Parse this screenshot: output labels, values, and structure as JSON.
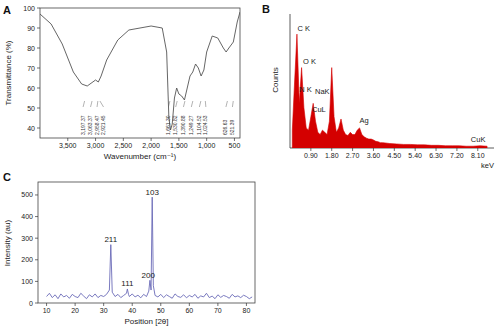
{
  "chart_data": [
    {
      "type": "line",
      "title": "A",
      "x_label": "Wavenumber (cm⁻¹)",
      "y_label": "Transmittance (%)",
      "color": "#555555",
      "x": [
        4000,
        3800,
        3600,
        3400,
        3250,
        3150,
        3000,
        2950,
        2900,
        2800,
        2600,
        2400,
        2200,
        2000,
        1800,
        1720,
        1680,
        1650,
        1620,
        1580,
        1540,
        1500,
        1450,
        1400,
        1350,
        1300,
        1250,
        1200,
        1150,
        1100,
        1050,
        1000,
        900,
        800,
        700,
        650,
        600,
        520,
        450,
        400
      ],
      "values": [
        97,
        92,
        82,
        68,
        62,
        61,
        64,
        63,
        66,
        74,
        84,
        89,
        90,
        91,
        90,
        78,
        45,
        39,
        42,
        55,
        60,
        57,
        56,
        54,
        60,
        66,
        68,
        72,
        70,
        66,
        69,
        78,
        86,
        85,
        80,
        78,
        80,
        83,
        93,
        98
      ],
      "xlim": [
        4000,
        400
      ],
      "xticks": [
        {
          "value": 3500,
          "label": "3,500"
        },
        {
          "value": 3000,
          "label": "3,000"
        },
        {
          "value": 2500,
          "label": "2,500"
        },
        {
          "value": 2000,
          "label": "2,000"
        },
        {
          "value": 1500,
          "label": "1,500"
        },
        {
          "value": 1000,
          "label": "1,000"
        },
        500
      ],
      "ylim": [
        35,
        100
      ],
      "yticks": [
        40,
        50,
        60,
        70,
        80,
        90,
        100
      ],
      "annotations": [
        {
          "text": "3,197.37",
          "x": 3197.37
        },
        {
          "text": "3,063.37",
          "x": 3063.37
        },
        {
          "text": "2,958.47",
          "x": 2958.47
        },
        {
          "text": "2,921.45",
          "x": 2921.45
        },
        {
          "text": "1,661.30",
          "x": 1661.3
        },
        {
          "text": "1,530.82",
          "x": 1530.82
        },
        {
          "text": "1,390.88",
          "x": 1390.88
        },
        {
          "text": "1,249.27",
          "x": 1249.27
        },
        {
          "text": "1,104.52",
          "x": 1104.52
        },
        {
          "text": "1,024.53",
          "x": 1024.53
        },
        {
          "text": "626.63",
          "x": 626.63
        },
        {
          "text": "521.39",
          "x": 521.39
        }
      ]
    },
    {
      "type": "area",
      "title": "B",
      "x_label": "keV",
      "y_label": "Counts",
      "color": "#d40000",
      "tick_labels": "x",
      "x": [
        0.1,
        0.2,
        0.3,
        0.4,
        0.5,
        0.6,
        0.7,
        0.8,
        0.9,
        1.0,
        1.1,
        1.2,
        1.3,
        1.4,
        1.5,
        1.6,
        1.7,
        1.8,
        1.9,
        2.0,
        2.1,
        2.2,
        2.3,
        2.4,
        2.5,
        2.6,
        2.7,
        2.8,
        2.9,
        3.0,
        3.1,
        3.2,
        3.3,
        3.4,
        3.5,
        3.6,
        3.7,
        3.8,
        3.9,
        4.0,
        4.3,
        4.6,
        4.9,
        5.2,
        5.5,
        5.8,
        6.1,
        6.4,
        6.7,
        7.0,
        7.3,
        7.6,
        7.9,
        8.2,
        8.5
      ],
      "values": [
        40,
        150,
        255,
        100,
        180,
        90,
        45,
        40,
        70,
        100,
        60,
        35,
        30,
        40,
        35,
        30,
        60,
        180,
        70,
        35,
        45,
        65,
        40,
        30,
        28,
        35,
        30,
        30,
        40,
        45,
        30,
        25,
        22,
        20,
        20,
        18,
        15,
        14,
        12,
        12,
        10,
        9,
        8,
        8,
        7,
        7,
        6,
        6,
        5,
        5,
        5,
        4,
        4,
        5,
        4
      ],
      "xlim": [
        0,
        8.8
      ],
      "xticks": [
        {
          "value": 0.9,
          "label": "0.90"
        },
        {
          "value": 1.8,
          "label": "1.80"
        },
        {
          "value": 2.7,
          "label": "2.70"
        },
        {
          "value": 3.6,
          "label": "3.60"
        },
        {
          "value": 4.5,
          "label": "4.50"
        },
        {
          "value": 5.4,
          "label": "5.40"
        },
        {
          "value": 6.3,
          "label": "6.30"
        },
        {
          "value": 7.2,
          "label": "7.20"
        },
        {
          "value": 8.1,
          "label": "8.10"
        }
      ],
      "ylim": [
        0,
        300
      ],
      "annotations": [
        {
          "text": "C K",
          "x": 0.32,
          "y": 262
        },
        {
          "text": "O K",
          "x": 0.56,
          "y": 188
        },
        {
          "text": "N K",
          "x": 0.4,
          "y": 125
        },
        {
          "text": "NaK",
          "x": 1.08,
          "y": 120
        },
        {
          "text": "CuL",
          "x": 0.95,
          "y": 80
        },
        {
          "text": "Ag",
          "x": 3.0,
          "y": 55
        },
        {
          "text": "CuK",
          "x": 7.8,
          "y": 14
        }
      ]
    },
    {
      "type": "line",
      "title": "C",
      "x_label": "Position [2θ]",
      "y_label": "Intensity (au)",
      "color": "#6b6bb8",
      "x": [
        10,
        11,
        12,
        13,
        14,
        15,
        16,
        17,
        18,
        19,
        20,
        21,
        22,
        23,
        24,
        25,
        26,
        27,
        28,
        29,
        30,
        31,
        32,
        32.5,
        33,
        34,
        35,
        36,
        37,
        38,
        38.3,
        38.7,
        39,
        40,
        41,
        42,
        43,
        44,
        45,
        45.8,
        46.2,
        46.6,
        47,
        47.4,
        48,
        49,
        50,
        51,
        52,
        53,
        54,
        55,
        56,
        57,
        58,
        59,
        60,
        61,
        62,
        63,
        64,
        65,
        66,
        67,
        68,
        69,
        70,
        71,
        72,
        73,
        74,
        75,
        76,
        77,
        78,
        79,
        80,
        81,
        82
      ],
      "values": [
        30,
        45,
        25,
        38,
        20,
        42,
        28,
        35,
        22,
        40,
        30,
        25,
        45,
        32,
        20,
        38,
        28,
        42,
        25,
        35,
        30,
        40,
        60,
        270,
        50,
        30,
        40,
        25,
        35,
        45,
        65,
        40,
        30,
        42,
        28,
        36,
        24,
        40,
        30,
        55,
        105,
        60,
        490,
        80,
        35,
        28,
        40,
        25,
        38,
        30,
        22,
        42,
        30,
        26,
        38,
        24,
        35,
        28,
        40,
        22,
        33,
        28,
        45,
        25,
        32,
        20,
        38,
        26,
        35,
        30,
        22,
        40,
        28,
        33,
        25,
        36,
        30,
        20,
        28
      ],
      "xlim": [
        7,
        83
      ],
      "xticks": [
        10,
        20,
        30,
        40,
        50,
        60,
        70,
        80
      ],
      "ylim": [
        0,
        560
      ],
      "yticks": [
        0,
        100,
        200,
        300,
        400,
        500
      ],
      "annotations": [
        {
          "text": "211",
          "x": 32.5,
          "y": 282
        },
        {
          "text": "111",
          "x": 38.3,
          "y": 78
        },
        {
          "text": "200",
          "x": 45.6,
          "y": 118
        },
        {
          "text": "103",
          "x": 47,
          "y": 500
        }
      ]
    }
  ]
}
